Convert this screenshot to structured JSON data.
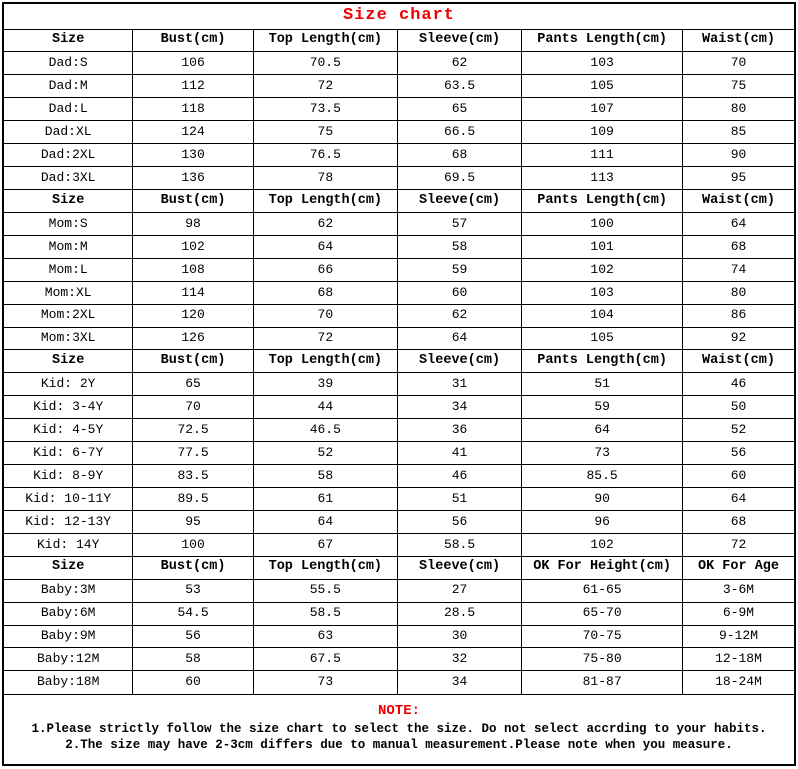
{
  "title": "Size chart",
  "colors": {
    "accent_red": "#ee0000",
    "text": "#000000",
    "border": "#000000",
    "background": "#ffffff"
  },
  "sections": [
    {
      "group": "Dad",
      "header": [
        "Size",
        "Bust(cm)",
        "Top Length(cm)",
        "Sleeve(cm)",
        "Pants Length(cm)",
        "Waist(cm)"
      ],
      "rows": [
        [
          "Dad:S",
          "106",
          "70.5",
          "62",
          "103",
          "70"
        ],
        [
          "Dad:M",
          "112",
          "72",
          "63.5",
          "105",
          "75"
        ],
        [
          "Dad:L",
          "118",
          "73.5",
          "65",
          "107",
          "80"
        ],
        [
          "Dad:XL",
          "124",
          "75",
          "66.5",
          "109",
          "85"
        ],
        [
          "Dad:2XL",
          "130",
          "76.5",
          "68",
          "111",
          "90"
        ],
        [
          "Dad:3XL",
          "136",
          "78",
          "69.5",
          "113",
          "95"
        ]
      ]
    },
    {
      "group": "Mom",
      "header": [
        "Size",
        "Bust(cm)",
        "Top Length(cm)",
        "Sleeve(cm)",
        "Pants Length(cm)",
        "Waist(cm)"
      ],
      "rows": [
        [
          "Mom:S",
          "98",
          "62",
          "57",
          "100",
          "64"
        ],
        [
          "Mom:M",
          "102",
          "64",
          "58",
          "101",
          "68"
        ],
        [
          "Mom:L",
          "108",
          "66",
          "59",
          "102",
          "74"
        ],
        [
          "Mom:XL",
          "114",
          "68",
          "60",
          "103",
          "80"
        ],
        [
          "Mom:2XL",
          "120",
          "70",
          "62",
          "104",
          "86"
        ],
        [
          "Mom:3XL",
          "126",
          "72",
          "64",
          "105",
          "92"
        ]
      ]
    },
    {
      "group": "Kid",
      "header": [
        "Size",
        "Bust(cm)",
        "Top Length(cm)",
        "Sleeve(cm)",
        "Pants Length(cm)",
        "Waist(cm)"
      ],
      "rows": [
        [
          "Kid: 2Y",
          "65",
          "39",
          "31",
          "51",
          "46"
        ],
        [
          "Kid: 3-4Y",
          "70",
          "44",
          "34",
          "59",
          "50"
        ],
        [
          "Kid: 4-5Y",
          "72.5",
          "46.5",
          "36",
          "64",
          "52"
        ],
        [
          "Kid: 6-7Y",
          "77.5",
          "52",
          "41",
          "73",
          "56"
        ],
        [
          "Kid: 8-9Y",
          "83.5",
          "58",
          "46",
          "85.5",
          "60"
        ],
        [
          "Kid: 10-11Y",
          "89.5",
          "61",
          "51",
          "90",
          "64"
        ],
        [
          "Kid: 12-13Y",
          "95",
          "64",
          "56",
          "96",
          "68"
        ],
        [
          "Kid: 14Y",
          "100",
          "67",
          "58.5",
          "102",
          "72"
        ]
      ]
    },
    {
      "group": "Baby",
      "header": [
        "Size",
        "Bust(cm)",
        "Top Length(cm)",
        "Sleeve(cm)",
        "OK For Height(cm)",
        "OK For Age"
      ],
      "rows": [
        [
          "Baby:3M",
          "53",
          "55.5",
          "27",
          "61-65",
          "3-6M"
        ],
        [
          "Baby:6M",
          "54.5",
          "58.5",
          "28.5",
          "65-70",
          "6-9M"
        ],
        [
          "Baby:9M",
          "56",
          "63",
          "30",
          "70-75",
          "9-12M"
        ],
        [
          "Baby:12M",
          "58",
          "67.5",
          "32",
          "75-80",
          "12-18M"
        ],
        [
          "Baby:18M",
          "60",
          "73",
          "34",
          "81-87",
          "18-24M"
        ]
      ]
    }
  ],
  "note": {
    "heading": "NOTE:",
    "lines": [
      "1.Please strictly follow the size chart to select the size. Do not select accrding to your habits.",
      "2.The size may have 2-3cm differs  due to manual measurement.Please note when you measure."
    ]
  }
}
